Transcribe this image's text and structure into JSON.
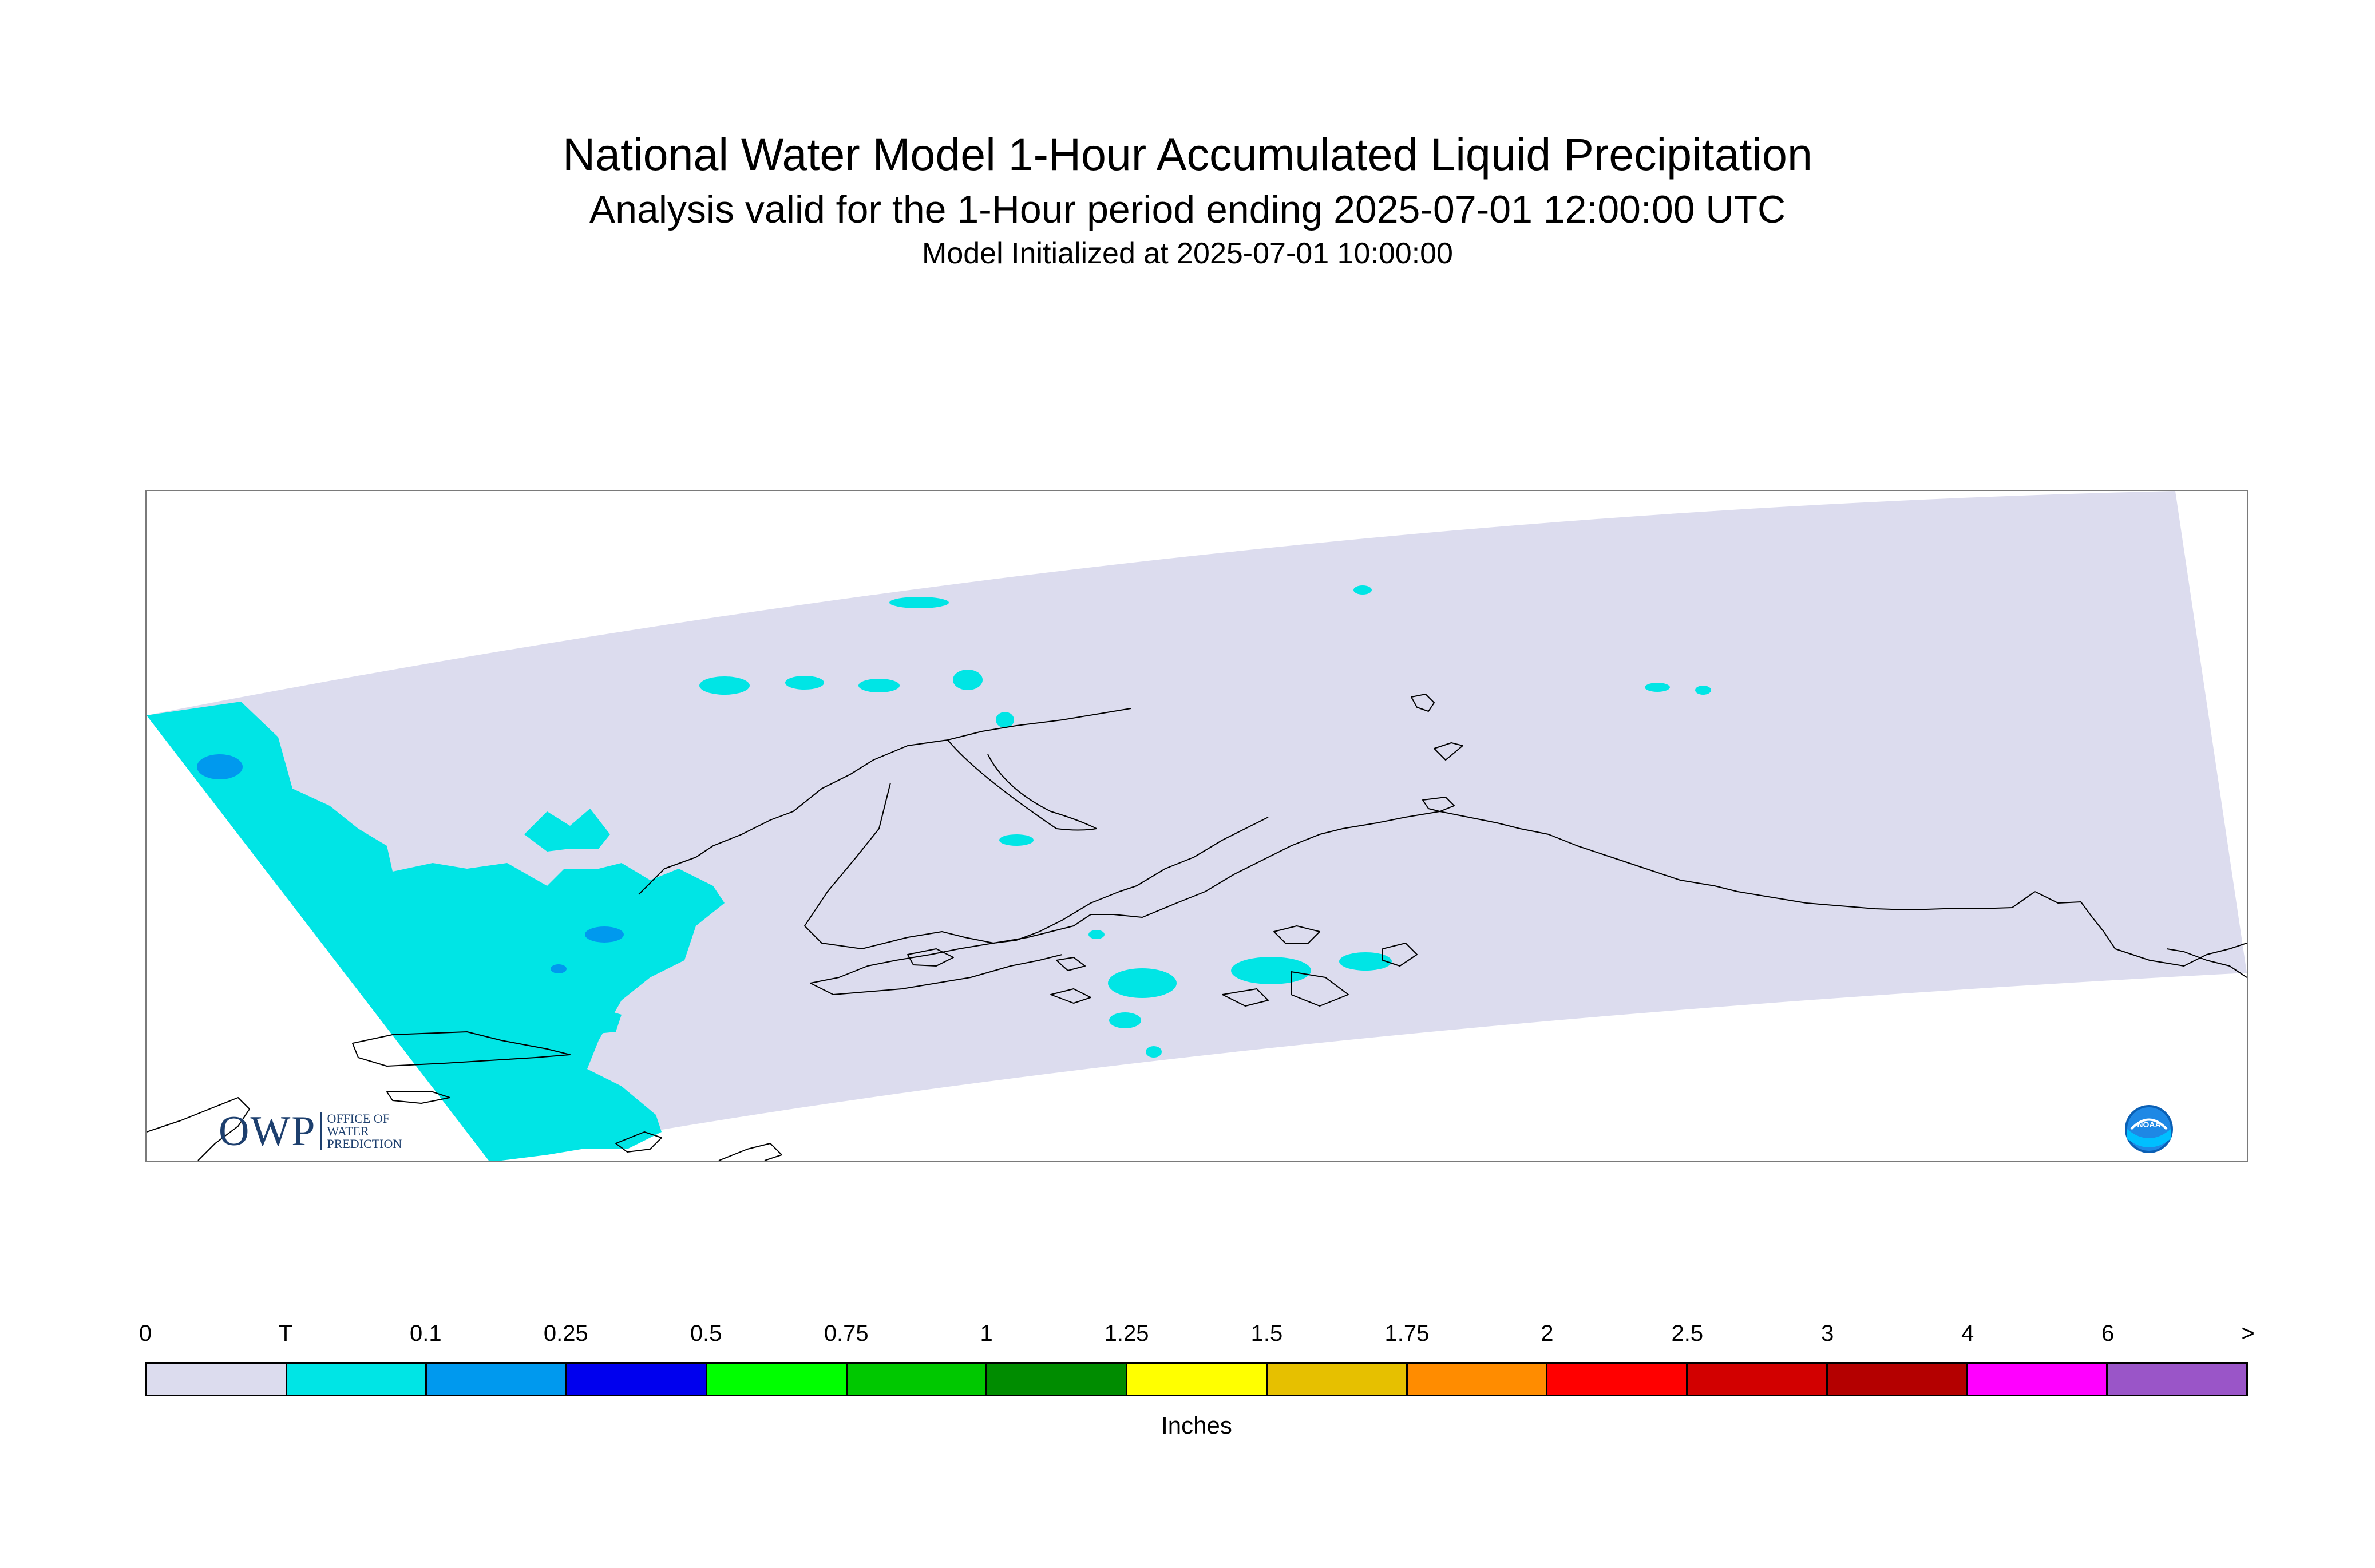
{
  "header": {
    "title": "National Water Model 1-Hour Accumulated Liquid Precipitation",
    "subtitle": "Analysis valid for the 1-Hour period ending 2025-07-01 12:00:00 UTC",
    "initialized": "Model Initialized at 2025-07-01 10:00:00"
  },
  "map": {
    "domain_fill_color": "#dcdcee",
    "coastline_color": "#000000",
    "precip_colors": {
      "trace": "#00e5e5",
      "light": "#0099ee"
    }
  },
  "logos": {
    "owp": {
      "big_text": "OWP",
      "small_text": "OFFICE OF\nWATER\nPREDICTION"
    },
    "noaa": {
      "text": "NOAA",
      "icon": "noaa-emblem"
    }
  },
  "legend": {
    "labels": [
      "0",
      "T",
      "0.1",
      "0.25",
      "0.5",
      "0.75",
      "1",
      "1.25",
      "1.5",
      "1.75",
      "2",
      "2.5",
      "3",
      "4",
      "6",
      ">"
    ],
    "colors": [
      "#dcdcee",
      "#00e5e5",
      "#0099ee",
      "#0000ee",
      "#00ff00",
      "#00c800",
      "#008c00",
      "#ffff00",
      "#e6c000",
      "#ff8c00",
      "#ff0000",
      "#d20000",
      "#b40000",
      "#ff00ff",
      "#9a55c8"
    ],
    "units": "Inches"
  }
}
